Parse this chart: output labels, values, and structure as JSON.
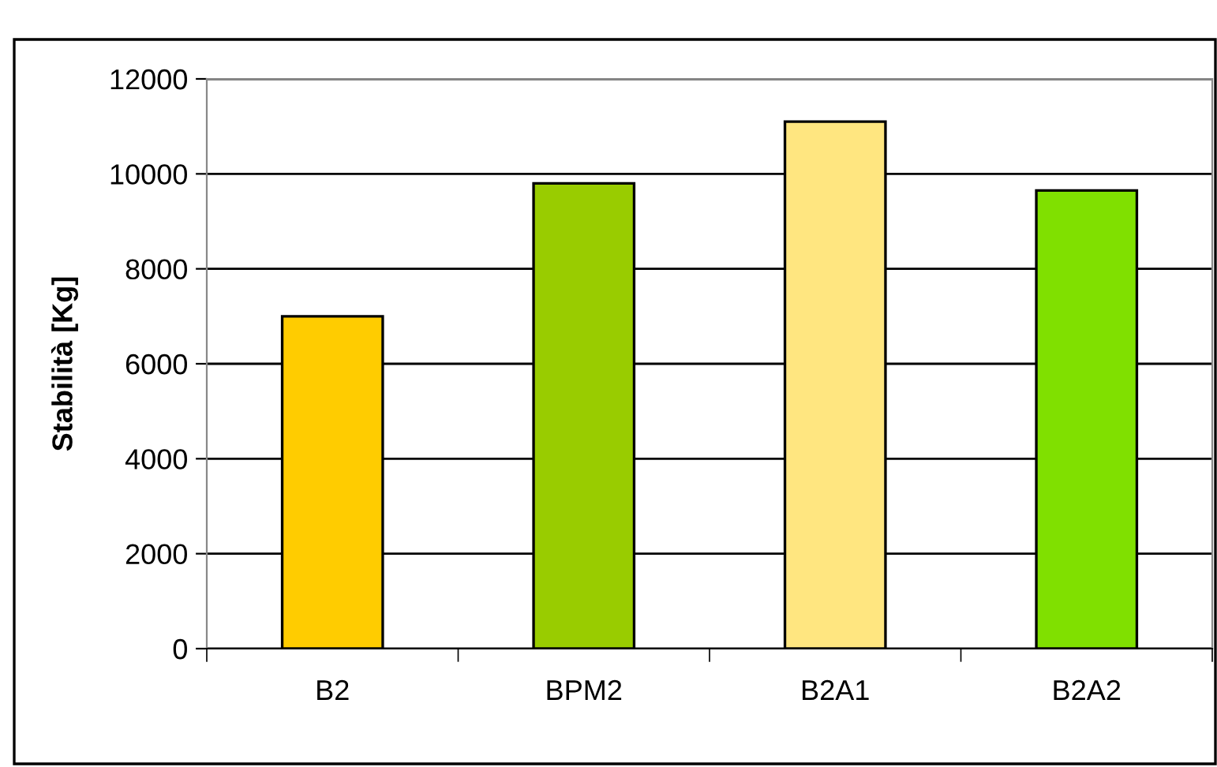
{
  "chart_data": {
    "type": "bar",
    "ylabel": "Stabilità [Kg]",
    "categories": [
      "B2",
      "BPM2",
      "B2A1",
      "B2A2"
    ],
    "values": [
      7000,
      9800,
      11100,
      9650
    ],
    "colors": [
      "#ffcc00",
      "#99cc00",
      "#ffe680",
      "#80e000"
    ],
    "ylim": [
      0,
      12000
    ],
    "yticks": [
      0,
      2000,
      4000,
      6000,
      8000,
      10000,
      12000
    ],
    "grid": "y"
  }
}
